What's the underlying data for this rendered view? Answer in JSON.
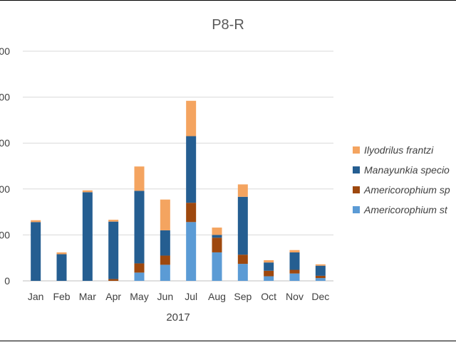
{
  "chart_data": {
    "type": "bar",
    "stacked": true,
    "title": "P8-R",
    "xlabel": "2017",
    "ylabel": "",
    "categories": [
      "Jan",
      "Feb",
      "Mar",
      "Apr",
      "May",
      "Jun",
      "Jul",
      "Aug",
      "Sep",
      "Oct",
      "Nov",
      "Dec"
    ],
    "y_tick_labels": [
      "0",
      "00",
      "00",
      "00",
      "00",
      "00"
    ],
    "ylim": [
      0,
      500
    ],
    "grid": true,
    "legend_position": "right",
    "series": [
      {
        "name": "Americorophium st",
        "color": "#5b9bd5",
        "values": [
          0,
          0,
          0,
          0,
          18,
          35,
          128,
          62,
          37,
          10,
          16,
          6
        ]
      },
      {
        "name": "Americorophium sp",
        "color": "#9e480e",
        "values": [
          0,
          0,
          0,
          4,
          20,
          20,
          42,
          32,
          20,
          12,
          8,
          5
        ]
      },
      {
        "name": "Manayunkia specio",
        "color": "#255e91",
        "values": [
          128,
          58,
          193,
          125,
          158,
          55,
          145,
          6,
          126,
          18,
          38,
          22
        ]
      },
      {
        "name": "Ilyodrilus frantzi",
        "color": "#f4a460",
        "values": [
          4,
          4,
          4,
          4,
          53,
          67,
          77,
          16,
          27,
          5,
          5,
          3
        ]
      }
    ],
    "legend_order": [
      "Ilyodrilus frantzi",
      "Manayunkia specio",
      "Americorophium sp",
      "Americorophium st"
    ]
  }
}
